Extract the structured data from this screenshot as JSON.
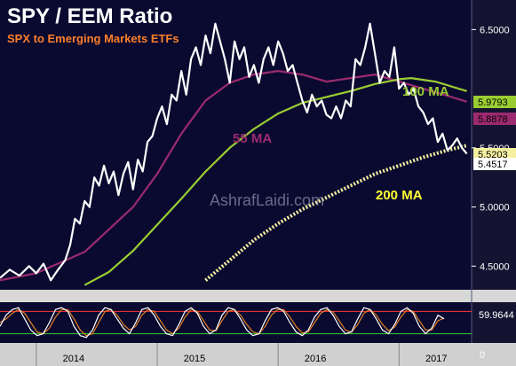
{
  "chart_data": {
    "type": "line",
    "title": "SPY / EEM Ratio",
    "subtitle": "SPX to Emerging Markets ETFs",
    "watermark": "AshrafLaidi.com",
    "x_range": [
      2013.7,
      2017.6
    ],
    "x_ticks": [
      "2014",
      "2015",
      "2016",
      "2017"
    ],
    "x_tick_values": [
      2014.0,
      2015.0,
      2016.0,
      2017.0
    ],
    "ylim": [
      4.3,
      6.75
    ],
    "y_ticks": [
      "4.5000",
      "5.0000",
      "5.5000",
      "6.5000"
    ],
    "y_tick_values": [
      4.5,
      5.0,
      5.5,
      6.5
    ],
    "grid": false,
    "series": [
      {
        "name": "SPY / EEM",
        "color": "#ffffff",
        "points": [
          [
            2013.7,
            4.4
          ],
          [
            2013.78,
            4.47
          ],
          [
            2013.86,
            4.42
          ],
          [
            2013.94,
            4.5
          ],
          [
            2014.0,
            4.44
          ],
          [
            2014.06,
            4.52
          ],
          [
            2014.12,
            4.38
          ],
          [
            2014.18,
            4.47
          ],
          [
            2014.24,
            4.55
          ],
          [
            2014.28,
            4.68
          ],
          [
            2014.32,
            4.9
          ],
          [
            2014.36,
            4.86
          ],
          [
            2014.4,
            5.05
          ],
          [
            2014.44,
            5.0
          ],
          [
            2014.48,
            5.25
          ],
          [
            2014.52,
            5.18
          ],
          [
            2014.56,
            5.35
          ],
          [
            2014.6,
            5.2
          ],
          [
            2014.64,
            5.3
          ],
          [
            2014.68,
            5.1
          ],
          [
            2014.72,
            5.28
          ],
          [
            2014.76,
            5.38
          ],
          [
            2014.8,
            5.15
          ],
          [
            2014.84,
            5.4
          ],
          [
            2014.88,
            5.3
          ],
          [
            2014.92,
            5.55
          ],
          [
            2014.96,
            5.6
          ],
          [
            2015.0,
            5.75
          ],
          [
            2015.04,
            5.85
          ],
          [
            2015.08,
            5.7
          ],
          [
            2015.12,
            5.95
          ],
          [
            2015.16,
            5.9
          ],
          [
            2015.2,
            6.15
          ],
          [
            2015.24,
            5.95
          ],
          [
            2015.28,
            6.25
          ],
          [
            2015.32,
            6.35
          ],
          [
            2015.36,
            6.2
          ],
          [
            2015.4,
            6.45
          ],
          [
            2015.44,
            6.3
          ],
          [
            2015.48,
            6.55
          ],
          [
            2015.52,
            6.4
          ],
          [
            2015.56,
            6.25
          ],
          [
            2015.6,
            6.05
          ],
          [
            2015.64,
            6.4
          ],
          [
            2015.68,
            6.25
          ],
          [
            2015.72,
            6.35
          ],
          [
            2015.76,
            6.1
          ],
          [
            2015.8,
            6.2
          ],
          [
            2015.84,
            6.05
          ],
          [
            2015.88,
            6.25
          ],
          [
            2015.92,
            6.35
          ],
          [
            2015.96,
            6.2
          ],
          [
            2016.0,
            6.4
          ],
          [
            2016.04,
            6.3
          ],
          [
            2016.08,
            6.15
          ],
          [
            2016.12,
            6.2
          ],
          [
            2016.16,
            6.05
          ],
          [
            2016.2,
            5.9
          ],
          [
            2016.24,
            5.8
          ],
          [
            2016.28,
            5.95
          ],
          [
            2016.32,
            5.85
          ],
          [
            2016.36,
            5.9
          ],
          [
            2016.4,
            5.78
          ],
          [
            2016.44,
            5.75
          ],
          [
            2016.48,
            5.85
          ],
          [
            2016.52,
            5.75
          ],
          [
            2016.56,
            5.9
          ],
          [
            2016.6,
            5.85
          ],
          [
            2016.64,
            6.25
          ],
          [
            2016.68,
            6.2
          ],
          [
            2016.72,
            6.35
          ],
          [
            2016.76,
            6.55
          ],
          [
            2016.8,
            6.3
          ],
          [
            2016.84,
            6.05
          ],
          [
            2016.88,
            6.15
          ],
          [
            2016.92,
            6.1
          ],
          [
            2016.96,
            6.35
          ],
          [
            2017.0,
            6.0
          ],
          [
            2017.04,
            6.05
          ],
          [
            2017.08,
            5.95
          ],
          [
            2017.12,
            6.0
          ],
          [
            2017.16,
            5.85
          ],
          [
            2017.2,
            5.8
          ],
          [
            2017.24,
            5.7
          ],
          [
            2017.28,
            5.75
          ],
          [
            2017.32,
            5.55
          ],
          [
            2017.36,
            5.62
          ],
          [
            2017.4,
            5.48
          ],
          [
            2017.44,
            5.52
          ],
          [
            2017.48,
            5.58
          ],
          [
            2017.52,
            5.5
          ],
          [
            2017.56,
            5.45
          ]
        ]
      },
      {
        "name": "55 MA",
        "color": "#9b2a6e",
        "points": [
          [
            2013.7,
            4.38
          ],
          [
            2014.0,
            4.44
          ],
          [
            2014.4,
            4.62
          ],
          [
            2014.8,
            5.0
          ],
          [
            2015.0,
            5.28
          ],
          [
            2015.2,
            5.62
          ],
          [
            2015.4,
            5.9
          ],
          [
            2015.6,
            6.05
          ],
          [
            2015.8,
            6.12
          ],
          [
            2016.0,
            6.15
          ],
          [
            2016.2,
            6.12
          ],
          [
            2016.4,
            6.06
          ],
          [
            2016.6,
            6.09
          ],
          [
            2016.8,
            6.12
          ],
          [
            2017.0,
            6.06
          ],
          [
            2017.2,
            6.0
          ],
          [
            2017.4,
            5.94
          ],
          [
            2017.56,
            5.89
          ]
        ]
      },
      {
        "name": "100 MA",
        "color": "#9acd32",
        "points": [
          [
            2014.4,
            4.34
          ],
          [
            2014.6,
            4.45
          ],
          [
            2014.8,
            4.63
          ],
          [
            2015.0,
            4.85
          ],
          [
            2015.2,
            5.07
          ],
          [
            2015.4,
            5.3
          ],
          [
            2015.6,
            5.5
          ],
          [
            2015.8,
            5.66
          ],
          [
            2016.0,
            5.79
          ],
          [
            2016.2,
            5.88
          ],
          [
            2016.4,
            5.93
          ],
          [
            2016.6,
            5.98
          ],
          [
            2016.8,
            6.04
          ],
          [
            2017.0,
            6.08
          ],
          [
            2017.1,
            6.09
          ],
          [
            2017.3,
            6.06
          ],
          [
            2017.56,
            5.98
          ]
        ]
      },
      {
        "name": "200 MA",
        "color": "#f5f0a0",
        "points": [
          [
            2015.4,
            4.38
          ],
          [
            2015.6,
            4.55
          ],
          [
            2015.8,
            4.72
          ],
          [
            2016.0,
            4.86
          ],
          [
            2016.2,
            4.98
          ],
          [
            2016.4,
            5.08
          ],
          [
            2016.6,
            5.18
          ],
          [
            2016.8,
            5.28
          ],
          [
            2017.0,
            5.35
          ],
          [
            2017.2,
            5.42
          ],
          [
            2017.4,
            5.48
          ],
          [
            2017.56,
            5.52
          ]
        ]
      }
    ],
    "last_value_tags": [
      {
        "text": "5.9793",
        "color": "#9acd32",
        "value": 5.9793
      },
      {
        "text": "5.8878",
        "color": "#9b2a6e",
        "value": 5.8878
      },
      {
        "text": "5.5203",
        "color": "#f5f0a0",
        "value": 5.5203
      },
      {
        "text": "5.4517",
        "color": "#ffffff",
        "value": 5.4517
      }
    ],
    "ma_labels": [
      {
        "text": "100 MA",
        "color": "#9acd32"
      },
      {
        "text": "55 MA",
        "color": "#9b2a6e"
      },
      {
        "text": "200 MA",
        "color": "#ffff33"
      }
    ],
    "oscillator": {
      "ylim": [
        0,
        100
      ],
      "visible_tick": "0",
      "last_value_text": "59.9644",
      "upper_line_color": "#ff3333",
      "lower_line_color": "#33cc33",
      "upper_level": 80,
      "lower_level": 20,
      "k_color": "#ffffff",
      "d_color": "#e67e22",
      "k_values": [
        40,
        70,
        85,
        90,
        60,
        30,
        15,
        20,
        50,
        85,
        90,
        80,
        40,
        15,
        10,
        30,
        70,
        90,
        85,
        60,
        35,
        20,
        50,
        85,
        90,
        70,
        40,
        20,
        15,
        45,
        80,
        90,
        75,
        40,
        20,
        30,
        70,
        90,
        85,
        60,
        30,
        15,
        20,
        55,
        85,
        90,
        80,
        50,
        25,
        15,
        30,
        65,
        85,
        90,
        70,
        40,
        20,
        25,
        60,
        90,
        85,
        60,
        30,
        20,
        45,
        80,
        90,
        75,
        40,
        20,
        35,
        70,
        60
      ],
      "d_values": [
        50,
        60,
        75,
        85,
        75,
        50,
        25,
        20,
        35,
        65,
        85,
        85,
        60,
        30,
        15,
        20,
        50,
        80,
        85,
        70,
        45,
        30,
        40,
        70,
        85,
        80,
        55,
        30,
        20,
        35,
        65,
        85,
        80,
        55,
        30,
        28,
        55,
        80,
        85,
        70,
        45,
        25,
        20,
        40,
        70,
        85,
        85,
        65,
        40,
        22,
        25,
        50,
        75,
        85,
        78,
        55,
        30,
        24,
        45,
        75,
        85,
        70,
        45,
        28,
        38,
        65,
        85,
        80,
        55,
        30,
        30,
        55,
        62
      ]
    }
  }
}
